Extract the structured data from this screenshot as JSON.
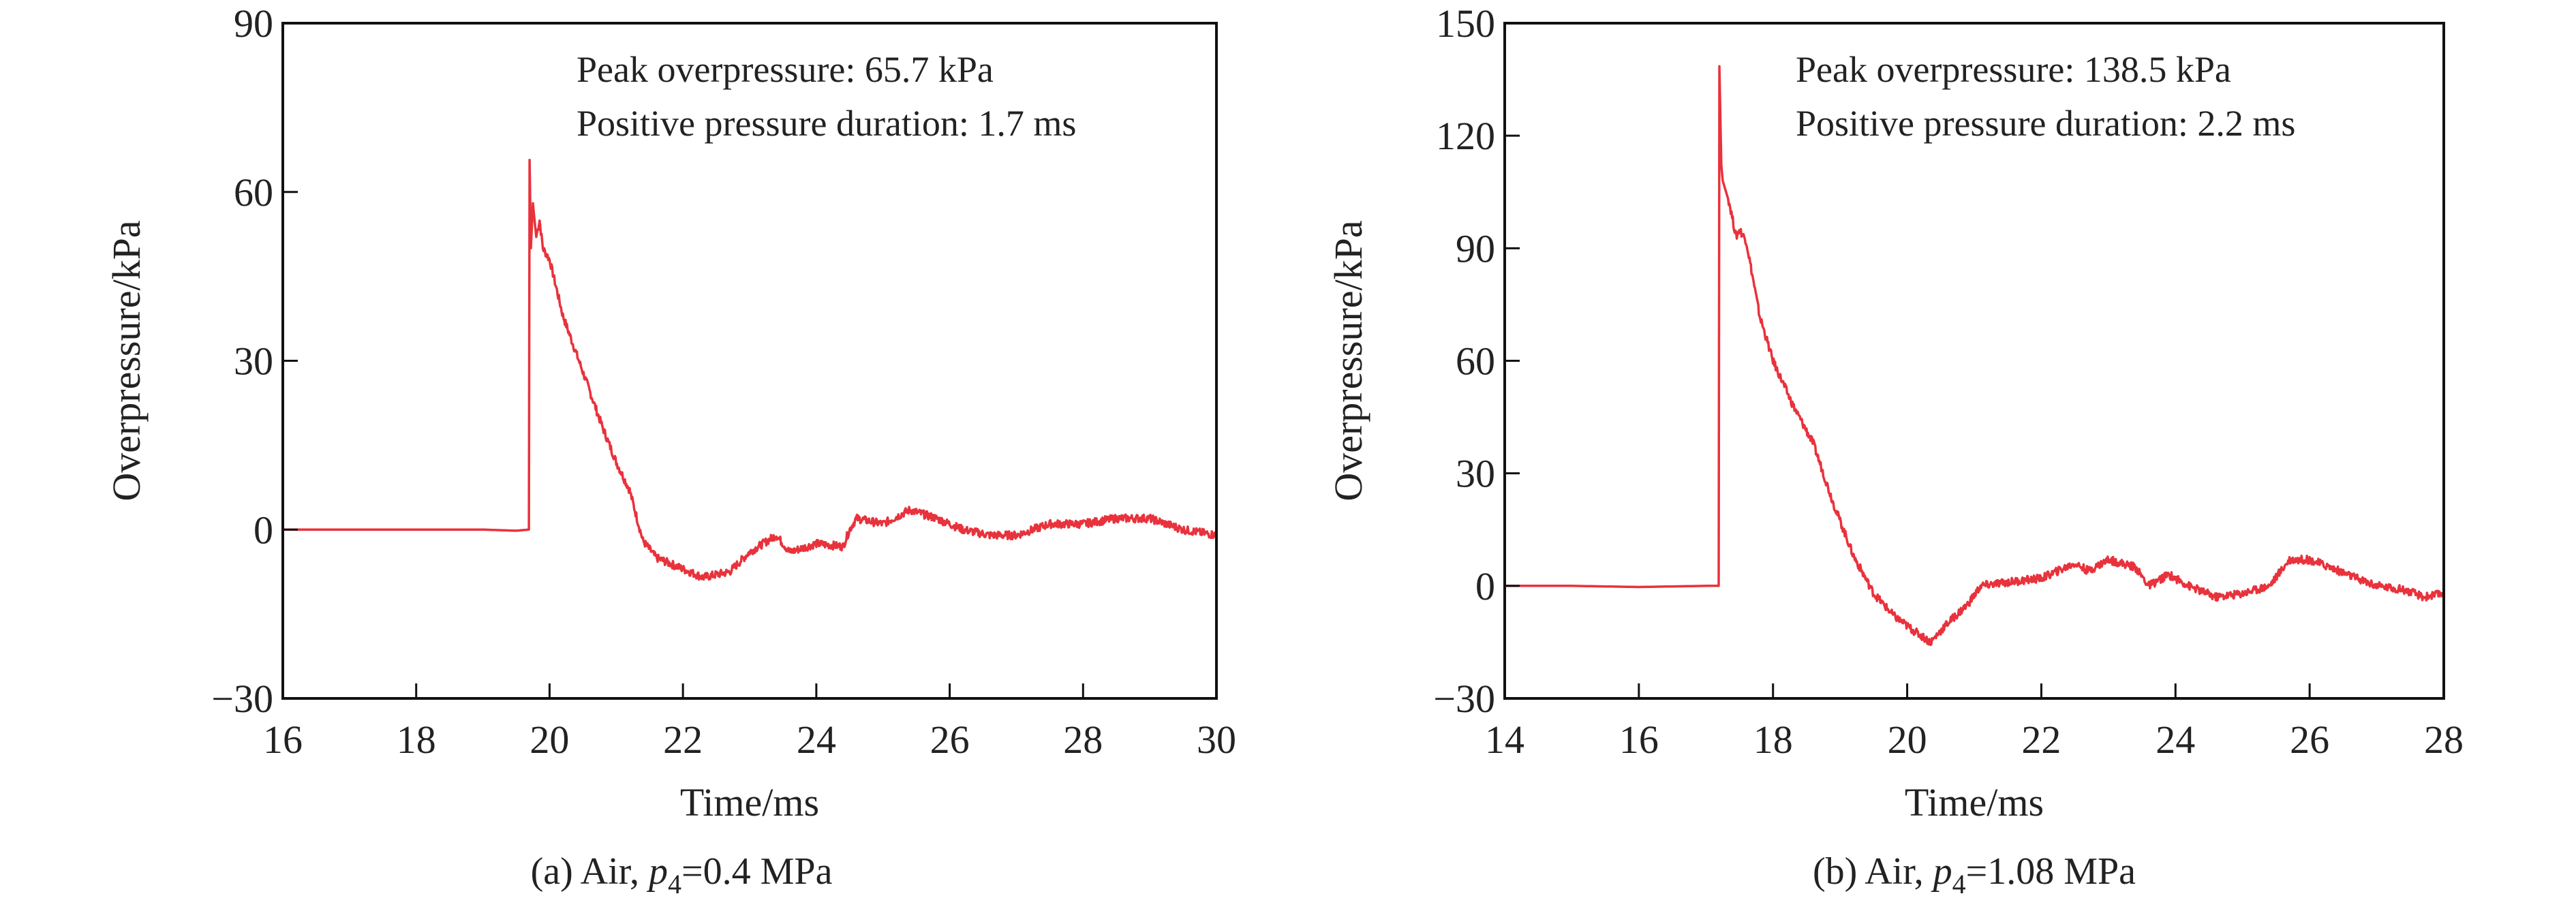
{
  "chart_data": [
    {
      "id": "a",
      "type": "line",
      "xlabel": "Time/ms",
      "ylabel": "Overpressure/kPa",
      "xlim": [
        16,
        30
      ],
      "ylim": [
        -30,
        90
      ],
      "xticks": [
        16,
        18,
        20,
        22,
        24,
        26,
        28,
        30
      ],
      "yticks": [
        -30,
        0,
        30,
        60,
        90
      ],
      "ytick_labels": [
        "−30",
        "0",
        "30",
        "60",
        "90"
      ],
      "annotations": [
        "Peak overpressure: 65.7 kPa",
        "Positive pressure duration: 1.7 ms"
      ],
      "caption": {
        "prefix": "(a) Air, ",
        "var": "p",
        "sub": "4",
        "suffix": "=0.4 MPa"
      },
      "color": "#e8323c",
      "series": [
        {
          "name": "overpressure",
          "x": [
            16,
            17,
            18,
            19,
            19.5,
            19.69,
            19.7,
            19.72,
            19.75,
            19.8,
            19.85,
            19.9,
            20.0,
            20.2,
            20.5,
            20.8,
            21.0,
            21.2,
            21.4,
            21.6,
            22.0,
            22.3,
            22.7,
            23.0,
            23.4,
            23.6,
            24.0,
            24.4,
            24.5,
            24.6,
            24.8,
            25.0,
            25.4,
            25.8,
            26.2,
            26.6,
            27.0,
            27.5,
            28.0,
            28.5,
            29.0,
            29.5,
            30
          ],
          "y": [
            0,
            0,
            0,
            0,
            -0.2,
            0,
            65.7,
            50,
            58,
            52,
            55,
            50,
            48,
            38,
            28,
            18,
            12,
            7,
            -2,
            -5,
            -7,
            -8.5,
            -7.5,
            -4,
            -1,
            -4,
            -2.5,
            -3,
            0,
            2,
            1.5,
            1,
            3.5,
            2,
            0,
            -1,
            -1,
            1,
            1,
            2,
            2,
            0,
            -1
          ]
        }
      ]
    },
    {
      "id": "b",
      "type": "line",
      "xlabel": "Time/ms",
      "ylabel": "Overpressure/kPa",
      "xlim": [
        14,
        28
      ],
      "ylim": [
        -30,
        150
      ],
      "xticks": [
        14,
        16,
        18,
        20,
        22,
        24,
        26,
        28
      ],
      "yticks": [
        -30,
        0,
        30,
        60,
        90,
        120,
        150
      ],
      "ytick_labels": [
        "−30",
        "0",
        "30",
        "60",
        "90",
        "120",
        "150"
      ],
      "annotations": [
        "Peak overpressure: 138.5 kPa",
        "Positive pressure duration: 2.2 ms"
      ],
      "caption": {
        "prefix": "(b) Air, ",
        "var": "p",
        "sub": "4",
        "suffix": "=1.08 MPa"
      },
      "color": "#e8323c",
      "series": [
        {
          "name": "overpressure",
          "x": [
            14,
            15,
            16,
            17,
            17.19,
            17.2,
            17.23,
            17.25,
            17.35,
            17.45,
            17.5,
            17.6,
            17.8,
            18.0,
            18.3,
            18.6,
            18.9,
            19.2,
            19.5,
            19.8,
            20.1,
            20.35,
            20.6,
            20.9,
            21.1,
            21.5,
            22.0,
            22.5,
            22.7,
            23.0,
            23.4,
            23.6,
            23.9,
            24.2,
            24.6,
            25.0,
            25.4,
            25.7,
            26.0,
            26.3,
            26.7,
            27.0,
            27.4,
            27.7,
            28
          ],
          "y": [
            0,
            0,
            -0.3,
            0,
            0,
            138.5,
            112,
            108,
            102,
            93,
            95,
            92,
            72,
            60,
            48,
            38,
            22,
            8,
            -2,
            -8,
            -12,
            -15,
            -10,
            -5,
            0,
            1,
            2,
            6,
            4,
            7,
            5,
            0,
            3,
            0,
            -3,
            -2,
            0,
            7,
            7,
            5,
            2,
            0,
            -1,
            -3,
            -2
          ]
        }
      ]
    }
  ]
}
